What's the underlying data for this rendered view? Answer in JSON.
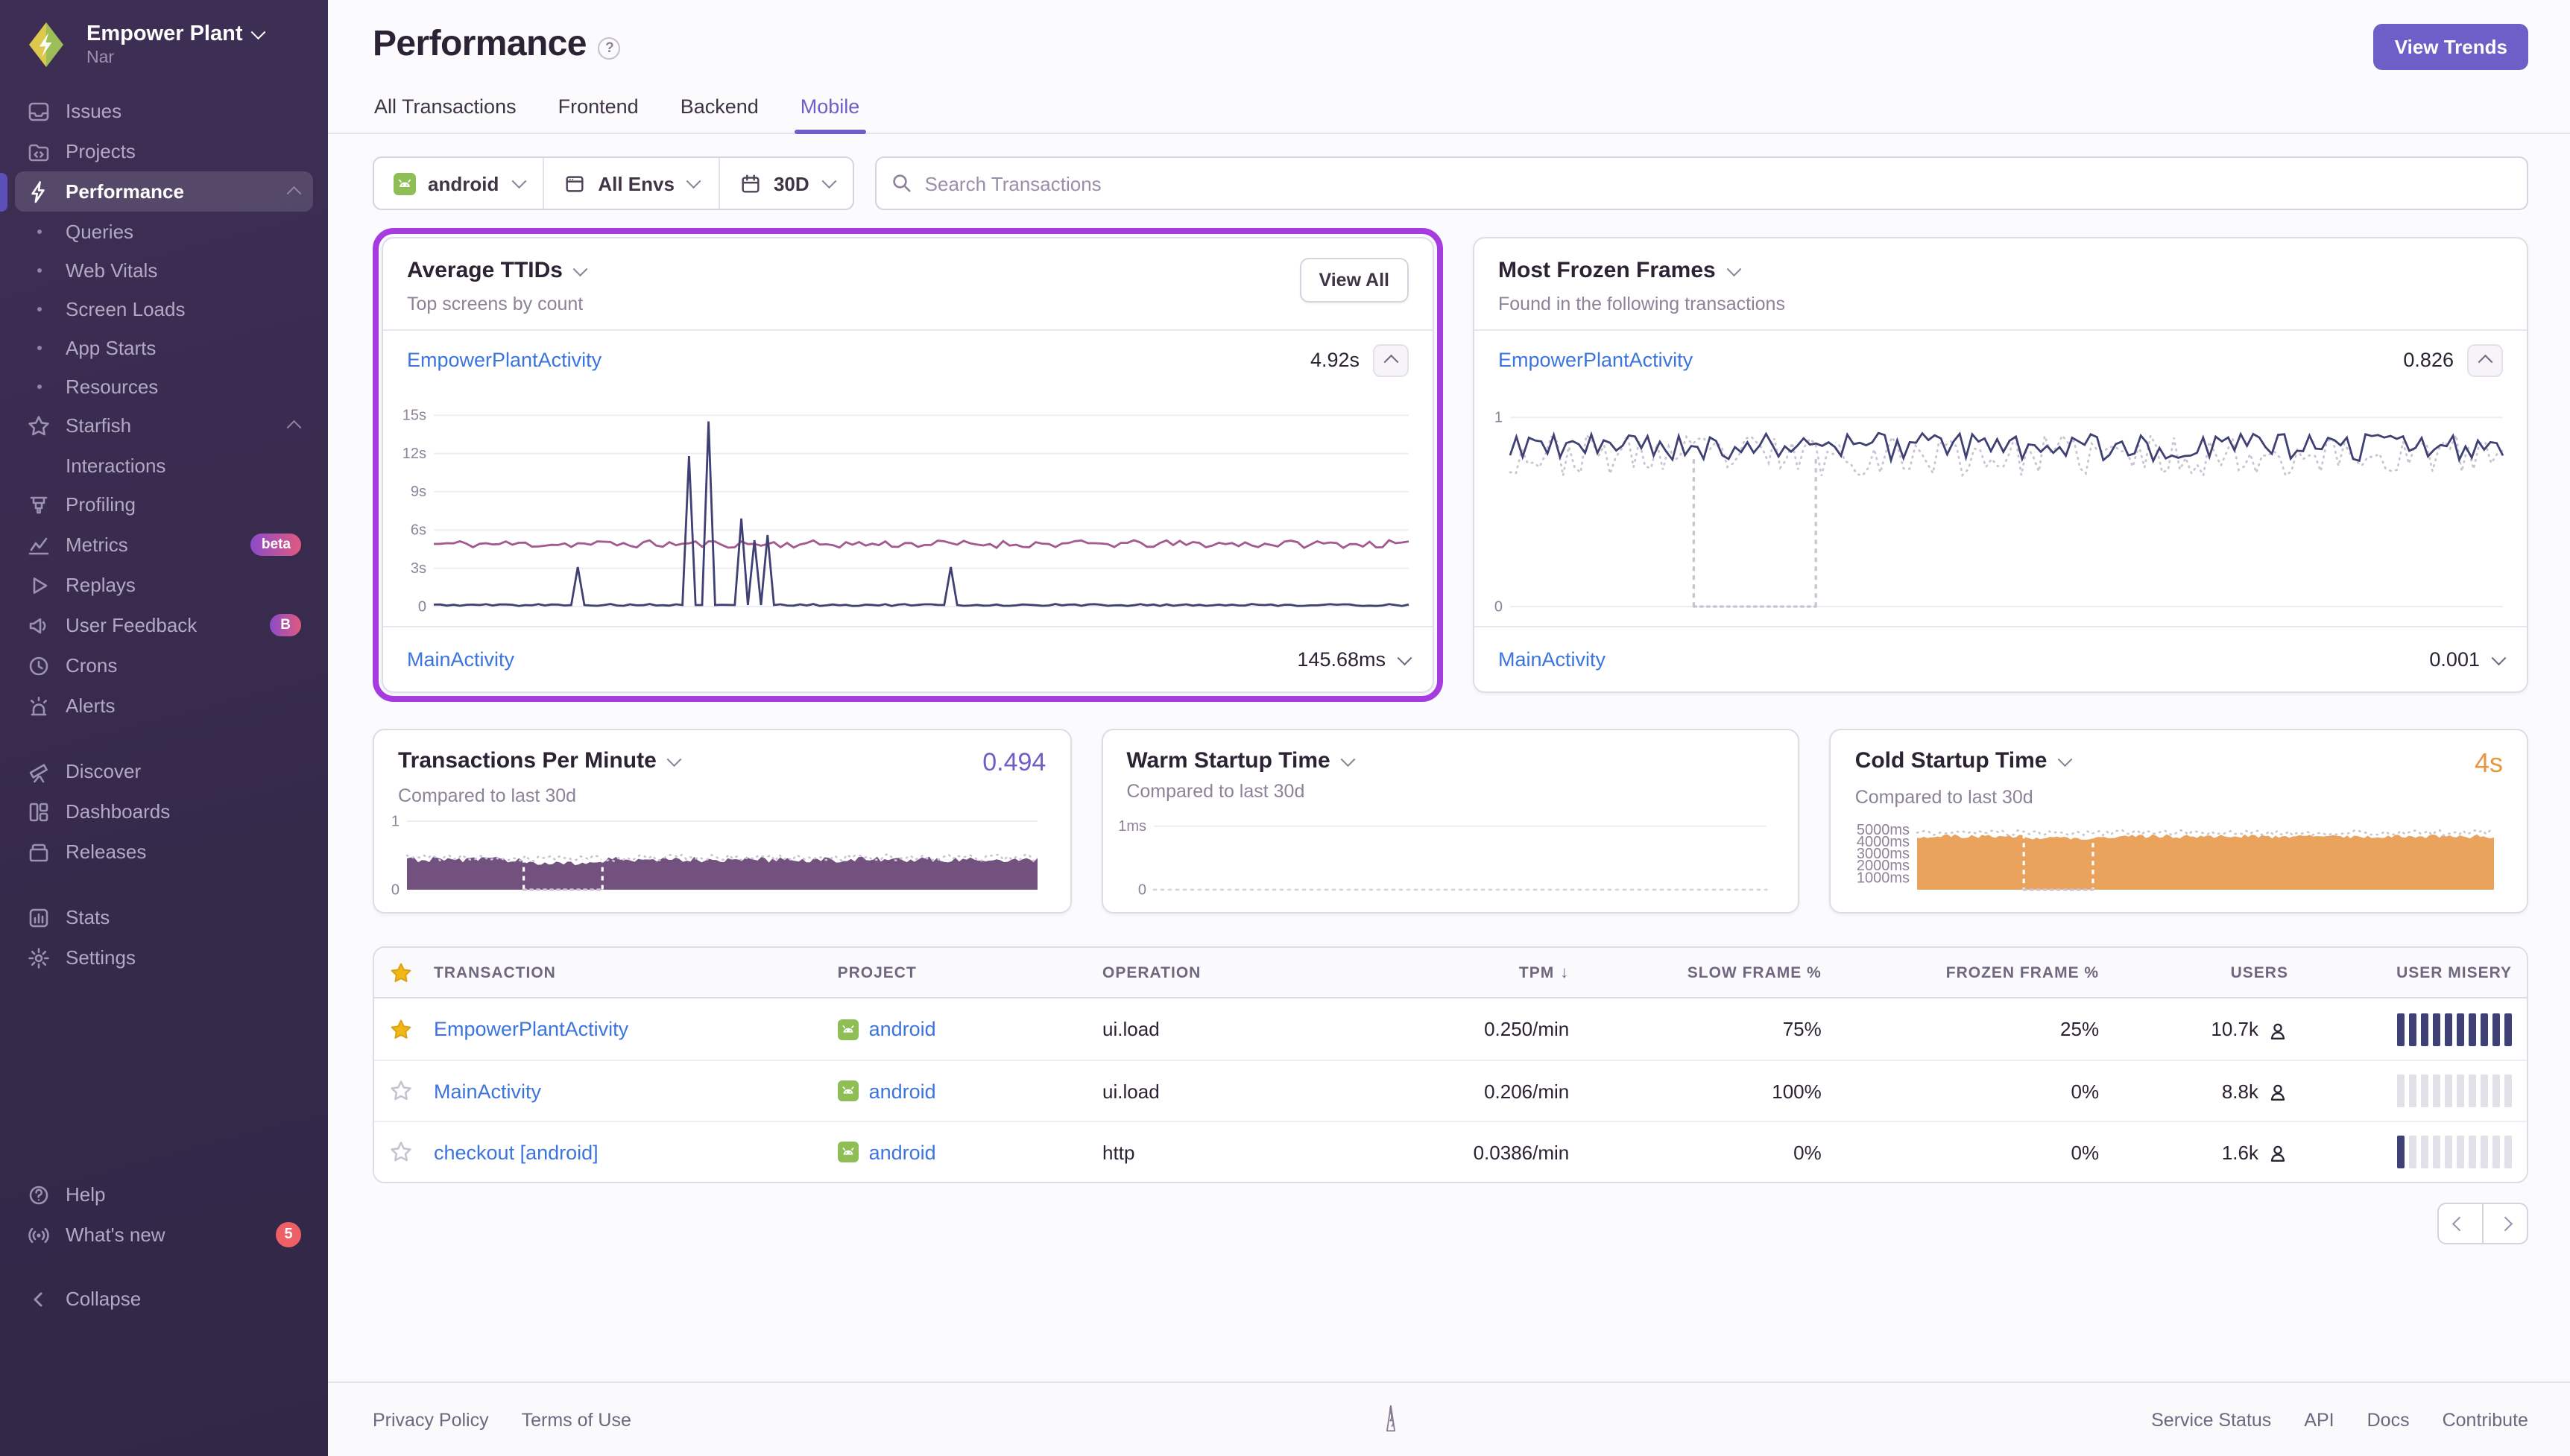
{
  "org": {
    "name": "Empower Plant",
    "project": "Nar"
  },
  "colors": {
    "accent": "#6C5FC7",
    "ring": "#A63CE0",
    "link": "#3C74DD",
    "navy": "#3F4073",
    "mauve": "#A3588E",
    "area-purple": "#72517E",
    "orange": "#E8963F",
    "sidebar-bg": "#362A4B",
    "badge-red": "#EE6066"
  },
  "sidebar": {
    "items": [
      {
        "label": "Issues",
        "icon": "issues",
        "type": "item"
      },
      {
        "label": "Projects",
        "icon": "projects",
        "type": "item"
      },
      {
        "label": "Performance",
        "icon": "lightning",
        "type": "item",
        "active": true,
        "chevron": "up"
      },
      {
        "label": "Queries",
        "type": "sub"
      },
      {
        "label": "Web Vitals",
        "type": "sub"
      },
      {
        "label": "Screen Loads",
        "type": "sub"
      },
      {
        "label": "App Starts",
        "type": "sub"
      },
      {
        "label": "Resources",
        "type": "sub"
      },
      {
        "label": "Starfish",
        "icon": "star",
        "type": "item",
        "chevron": "up"
      },
      {
        "label": "Interactions",
        "type": "sub",
        "nodot": true
      },
      {
        "label": "Profiling",
        "icon": "profiling",
        "type": "item"
      },
      {
        "label": "Metrics",
        "icon": "metrics",
        "type": "item",
        "badge": "beta",
        "badge_class": "badge-gradient"
      },
      {
        "label": "Replays",
        "icon": "play",
        "type": "item"
      },
      {
        "label": "User Feedback",
        "icon": "megaphone",
        "type": "item",
        "badge": "B",
        "badge_class": "badge-gradient"
      },
      {
        "label": "Crons",
        "icon": "clock",
        "type": "item"
      },
      {
        "label": "Alerts",
        "icon": "siren",
        "type": "item"
      },
      {
        "type": "gap"
      },
      {
        "label": "Discover",
        "icon": "telescope",
        "type": "item"
      },
      {
        "label": "Dashboards",
        "icon": "dashboards",
        "type": "item"
      },
      {
        "label": "Releases",
        "icon": "releases",
        "type": "item"
      },
      {
        "type": "gap"
      },
      {
        "label": "Stats",
        "icon": "stats",
        "type": "item"
      },
      {
        "label": "Settings",
        "icon": "gear",
        "type": "item"
      }
    ],
    "footer_items": [
      {
        "label": "Help",
        "icon": "help",
        "type": "item"
      },
      {
        "label": "What's new",
        "icon": "broadcast",
        "type": "item",
        "badge": "5",
        "badge_class": "badge-count"
      }
    ],
    "collapse_label": "Collapse"
  },
  "header": {
    "title": "Performance",
    "view_trends": "View Trends",
    "tabs": [
      {
        "label": "All Transactions"
      },
      {
        "label": "Frontend"
      },
      {
        "label": "Backend"
      },
      {
        "label": "Mobile",
        "active": true
      }
    ]
  },
  "filters": {
    "project_label": "android",
    "env_label": "All Envs",
    "range_label": "30D",
    "search_placeholder": "Search Transactions"
  },
  "cards": {
    "ttid": {
      "title": "Average TTIDs",
      "subtitle": "Top screens by count",
      "action": "View All",
      "rows": [
        {
          "name": "EmpowerPlantActivity",
          "value": "4.92s"
        },
        {
          "name": "MainActivity",
          "value": "145.68ms"
        }
      ]
    },
    "frozen": {
      "title": "Most Frozen Frames",
      "subtitle": "Found in the following transactions",
      "rows": [
        {
          "name": "EmpowerPlantActivity",
          "value": "0.826"
        },
        {
          "name": "MainActivity",
          "value": "0.001"
        }
      ]
    },
    "tpm": {
      "title": "Transactions Per Minute",
      "subtitle": "Compared to last 30d",
      "value": "0.494"
    },
    "warm": {
      "title": "Warm Startup Time",
      "subtitle": "Compared to last 30d"
    },
    "cold": {
      "title": "Cold Startup Time",
      "subtitle": "Compared to last 30d",
      "value": "4s"
    }
  },
  "chart_data": [
    {
      "id": "ttid",
      "type": "line",
      "title": "Average TTIDs - EmpowerPlantActivity",
      "ymax": 16,
      "padL": 30,
      "yticks": [
        {
          "v": 15,
          "label": "15s",
          "grid": true
        },
        {
          "v": 12,
          "label": "12s",
          "grid": true
        },
        {
          "v": 9,
          "label": "9s",
          "grid": true
        },
        {
          "v": 6,
          "label": "6s",
          "grid": true
        },
        {
          "v": 3,
          "label": "3s",
          "grid": true
        },
        {
          "v": 0,
          "label": "0",
          "grid": true
        }
      ],
      "series": [
        {
          "name": "EmpowerPlantActivity avg TTID (s)",
          "color": "#A3588E",
          "base": 4.9,
          "noise": 0.3,
          "points": 150,
          "seed": 11,
          "width": 1.4
        },
        {
          "name": "MainActivity avg TTID (s)",
          "color": "#3F4073",
          "base": 0.12,
          "noise": 0.08,
          "points": 150,
          "seed": 5,
          "width": 1.4,
          "spikes": [
            [
              0.146,
              3.1
            ],
            [
              0.264,
              11.8
            ],
            [
              0.285,
              14.5
            ],
            [
              0.317,
              6.9
            ],
            [
              0.328,
              5.2
            ],
            [
              0.34,
              5.6
            ],
            [
              0.53,
              3.1
            ]
          ]
        }
      ]
    },
    {
      "id": "frozen",
      "type": "line",
      "title": "Most Frozen Frames - EmpowerPlantActivity",
      "ymax": 1.08,
      "padL": 20,
      "yticks": [
        {
          "v": 1,
          "label": "1",
          "grid": true
        },
        {
          "v": 0,
          "label": "0",
          "grid": true
        }
      ],
      "region": {
        "x1": 0.185,
        "x2": 0.308,
        "ytop": 0.78
      },
      "series": [
        {
          "name": "previous period",
          "color": "#CBC4D3",
          "base": 0.8,
          "noise": 0.11,
          "points": 170,
          "seed": 23,
          "width": 1.4,
          "dotted": true
        },
        {
          "name": "frozen frames rate",
          "color": "#3F4073",
          "base": 0.845,
          "noise": 0.075,
          "points": 160,
          "seed": 9,
          "width": 1.4
        }
      ]
    },
    {
      "id": "tpm",
      "type": "area",
      "title": "Transactions Per Minute",
      "ymax": 1,
      "padL": 16,
      "yticks": [
        {
          "v": 1,
          "label": "1",
          "grid": true
        },
        {
          "v": 0,
          "label": "0"
        }
      ],
      "region": {
        "x1": 0.185,
        "x2": 0.31,
        "ytop": 0.46
      },
      "series": [
        {
          "name": "tpm",
          "color": "#72517E",
          "base": 0.44,
          "noise": 0.045,
          "points": 170,
          "seed": 31,
          "area": true,
          "dip": [
            0.185,
            0.31,
            0.375
          ]
        },
        {
          "name": "previous period",
          "color": "#CBC4D3",
          "base": 0.465,
          "noise": 0.05,
          "points": 150,
          "seed": 41,
          "dotted": true,
          "width": 1.3
        }
      ]
    },
    {
      "id": "warm",
      "type": "line",
      "title": "Warm Startup Time",
      "ymax": 1.15,
      "padL": 28,
      "yticks": [
        {
          "v": 1,
          "label": "1ms",
          "grid": true
        },
        {
          "v": 0,
          "label": "0",
          "dotted": true
        }
      ],
      "series": []
    },
    {
      "id": "cold",
      "type": "area",
      "title": "Cold Startup Time",
      "ymax": 5600,
      "padL": 52,
      "yticks": [
        {
          "v": 5000,
          "label": "5000ms"
        },
        {
          "v": 4000,
          "label": "4000ms"
        },
        {
          "v": 3000,
          "label": "3000ms"
        },
        {
          "v": 2000,
          "label": "2000ms"
        },
        {
          "v": 1000,
          "label": "1000ms"
        }
      ],
      "region": {
        "x1": 0.185,
        "x2": 0.305,
        "ytop": 4650
      },
      "series": [
        {
          "name": "cold startup (ms)",
          "color": "#E9A35D",
          "base": 4450,
          "noise": 170,
          "points": 170,
          "seed": 51,
          "area": true,
          "dip": [
            0.185,
            0.305,
            4300
          ]
        },
        {
          "name": "previous period",
          "color": "#CBC4D3",
          "base": 4750,
          "noise": 220,
          "points": 150,
          "seed": 61,
          "dotted": true,
          "width": 1.3
        }
      ]
    }
  ],
  "table": {
    "columns": [
      {
        "star": true
      },
      {
        "label": "TRANSACTION"
      },
      {
        "label": "PROJECT"
      },
      {
        "label": "OPERATION"
      },
      {
        "label": "TPM",
        "sorted": "desc",
        "align": "right"
      },
      {
        "label": "SLOW FRAME %",
        "align": "right"
      },
      {
        "label": "FROZEN FRAME %",
        "align": "right"
      },
      {
        "label": "USERS",
        "align": "right"
      },
      {
        "label": "USER MISERY",
        "align": "right"
      }
    ],
    "rows": [
      {
        "starred": true,
        "transaction": "EmpowerPlantActivity",
        "project": "android",
        "operation": "ui.load",
        "tpm": "0.250/min",
        "slow_frame": "75%",
        "frozen_frame": "25%",
        "users": "10.7k",
        "misery_filled": 10
      },
      {
        "starred": false,
        "transaction": "MainActivity",
        "project": "android",
        "operation": "ui.load",
        "tpm": "0.206/min",
        "slow_frame": "100%",
        "frozen_frame": "0%",
        "users": "8.8k",
        "misery_filled": 0
      },
      {
        "starred": false,
        "transaction": "checkout [android]",
        "project": "android",
        "operation": "http",
        "tpm": "0.0386/min",
        "slow_frame": "0%",
        "frozen_frame": "0%",
        "users": "1.6k",
        "misery_filled": 1
      }
    ]
  },
  "footer": {
    "left": [
      "Privacy Policy",
      "Terms of Use"
    ],
    "right": [
      "Service Status",
      "API",
      "Docs",
      "Contribute"
    ]
  }
}
